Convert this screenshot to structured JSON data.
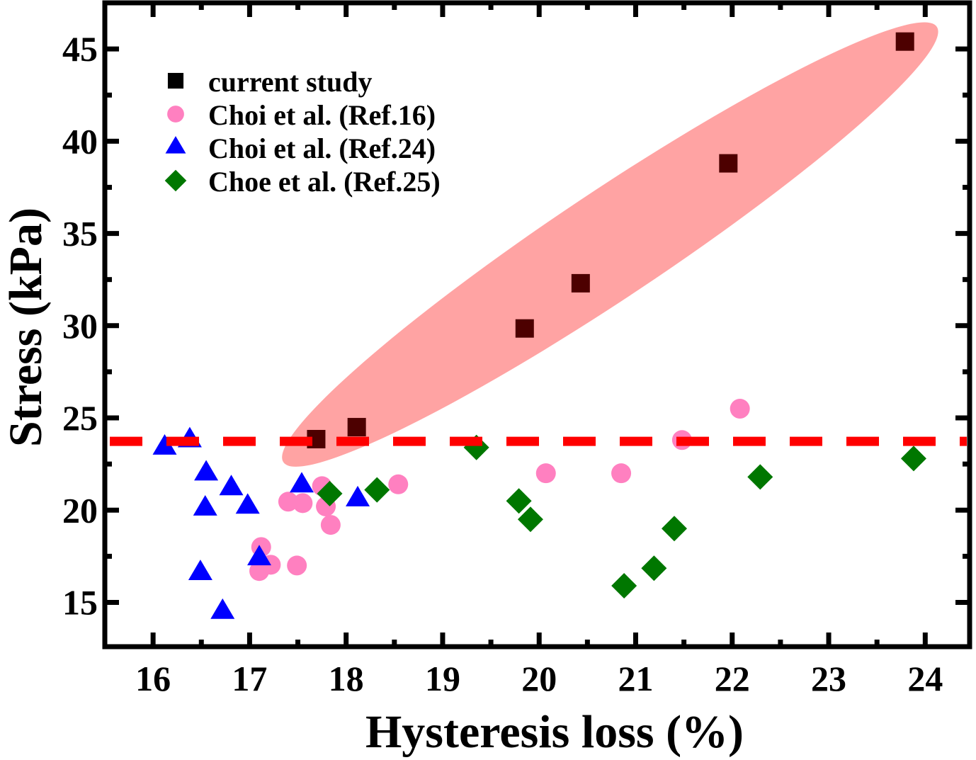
{
  "chart_data": {
    "type": "scatter",
    "title": "",
    "xlabel": "Hysteresis loss (%)",
    "ylabel": "Stress (kPa)",
    "xlim": [
      15.5,
      24.46
    ],
    "ylim": [
      12.6,
      47.5
    ],
    "xticks": [
      16,
      17,
      18,
      19,
      20,
      21,
      22,
      23,
      24
    ],
    "xtick_labels": [
      "16",
      "17",
      "18",
      "19",
      "20",
      "21",
      "22",
      "23",
      "24"
    ],
    "x_minor_step": 0.5,
    "yticks": [
      15,
      20,
      25,
      30,
      35,
      40,
      45
    ],
    "ytick_labels": [
      "15",
      "20",
      "25",
      "30",
      "35",
      "40",
      "45"
    ],
    "y_minor_step": 2.5,
    "grid": false,
    "legend_position": "top-left",
    "series": [
      {
        "name": "current study",
        "marker": "square",
        "color": "#4d0000",
        "legend_color": "#000000",
        "points": [
          [
            17.69,
            23.85
          ],
          [
            18.11,
            24.5
          ],
          [
            19.85,
            29.85
          ],
          [
            20.43,
            32.3
          ],
          [
            21.96,
            38.8
          ],
          [
            23.79,
            45.4
          ]
        ]
      },
      {
        "name": "Choi et al. (Ref.16)",
        "marker": "circle",
        "color": "#ff80c0",
        "points": [
          [
            17.12,
            18.0
          ],
          [
            17.22,
            17.04
          ],
          [
            17.1,
            16.7
          ],
          [
            17.49,
            17.0
          ],
          [
            17.4,
            20.46
          ],
          [
            17.55,
            20.38
          ],
          [
            17.75,
            21.3
          ],
          [
            17.79,
            20.2
          ],
          [
            17.84,
            19.2
          ],
          [
            18.54,
            21.4
          ],
          [
            20.07,
            22.0
          ],
          [
            20.85,
            22.0
          ],
          [
            21.48,
            23.8
          ],
          [
            22.08,
            25.5
          ]
        ]
      },
      {
        "name": "Choi et al. (Ref.24)",
        "marker": "triangle",
        "color": "#0000ff",
        "points": [
          [
            16.12,
            23.4
          ],
          [
            16.38,
            23.8
          ],
          [
            16.55,
            22.0
          ],
          [
            16.81,
            21.2
          ],
          [
            16.54,
            20.1
          ],
          [
            16.98,
            20.2
          ],
          [
            16.49,
            16.6
          ],
          [
            16.72,
            14.5
          ],
          [
            17.1,
            17.4
          ],
          [
            17.54,
            21.35
          ],
          [
            18.12,
            20.6
          ]
        ]
      },
      {
        "name": "Choe et al. (Ref.25)",
        "marker": "diamond",
        "color": "#007700",
        "points": [
          [
            17.83,
            20.9
          ],
          [
            18.32,
            21.1
          ],
          [
            19.35,
            23.4
          ],
          [
            19.79,
            20.5
          ],
          [
            19.91,
            19.5
          ],
          [
            20.88,
            15.9
          ],
          [
            21.19,
            16.85
          ],
          [
            21.4,
            19.0
          ],
          [
            22.29,
            21.8
          ],
          [
            23.88,
            22.8
          ]
        ]
      }
    ],
    "annotations": [
      {
        "type": "hline",
        "y": 23.73,
        "style": "dashed",
        "color": "#ff0000"
      },
      {
        "type": "ellipse",
        "label": "current study highlight",
        "from": [
          17.35,
          22.6
        ],
        "to": [
          24.12,
          46.2
        ],
        "minor_halfwidth_kpa": 2.9,
        "color": "#ffa3a3"
      }
    ]
  }
}
